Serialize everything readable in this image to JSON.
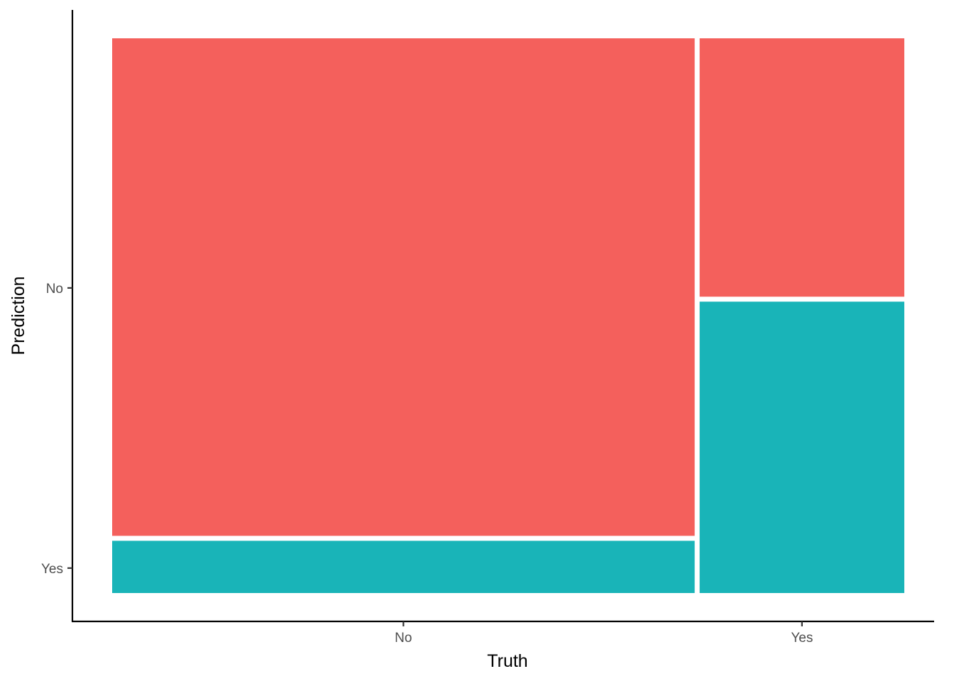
{
  "chart_data": {
    "type": "mosaic",
    "title": "",
    "xlabel": "Truth",
    "ylabel": "Prediction",
    "x_categories": [
      "No",
      "Yes"
    ],
    "y_categories": [
      "No",
      "Yes"
    ],
    "x_widths": [
      0.74,
      0.26
    ],
    "cells": [
      {
        "truth": "No",
        "prediction": "No",
        "proportion": 0.905,
        "color": "#F4605C"
      },
      {
        "truth": "No",
        "prediction": "Yes",
        "proportion": 0.095,
        "color": "#19B4B8"
      },
      {
        "truth": "Yes",
        "prediction": "No",
        "proportion": 0.47,
        "color": "#F4605C"
      },
      {
        "truth": "Yes",
        "prediction": "Yes",
        "proportion": 0.53,
        "color": "#19B4B8"
      }
    ],
    "y_tick_positions": [
      0.45,
      0.955
    ],
    "grid": false,
    "legend": "none"
  }
}
